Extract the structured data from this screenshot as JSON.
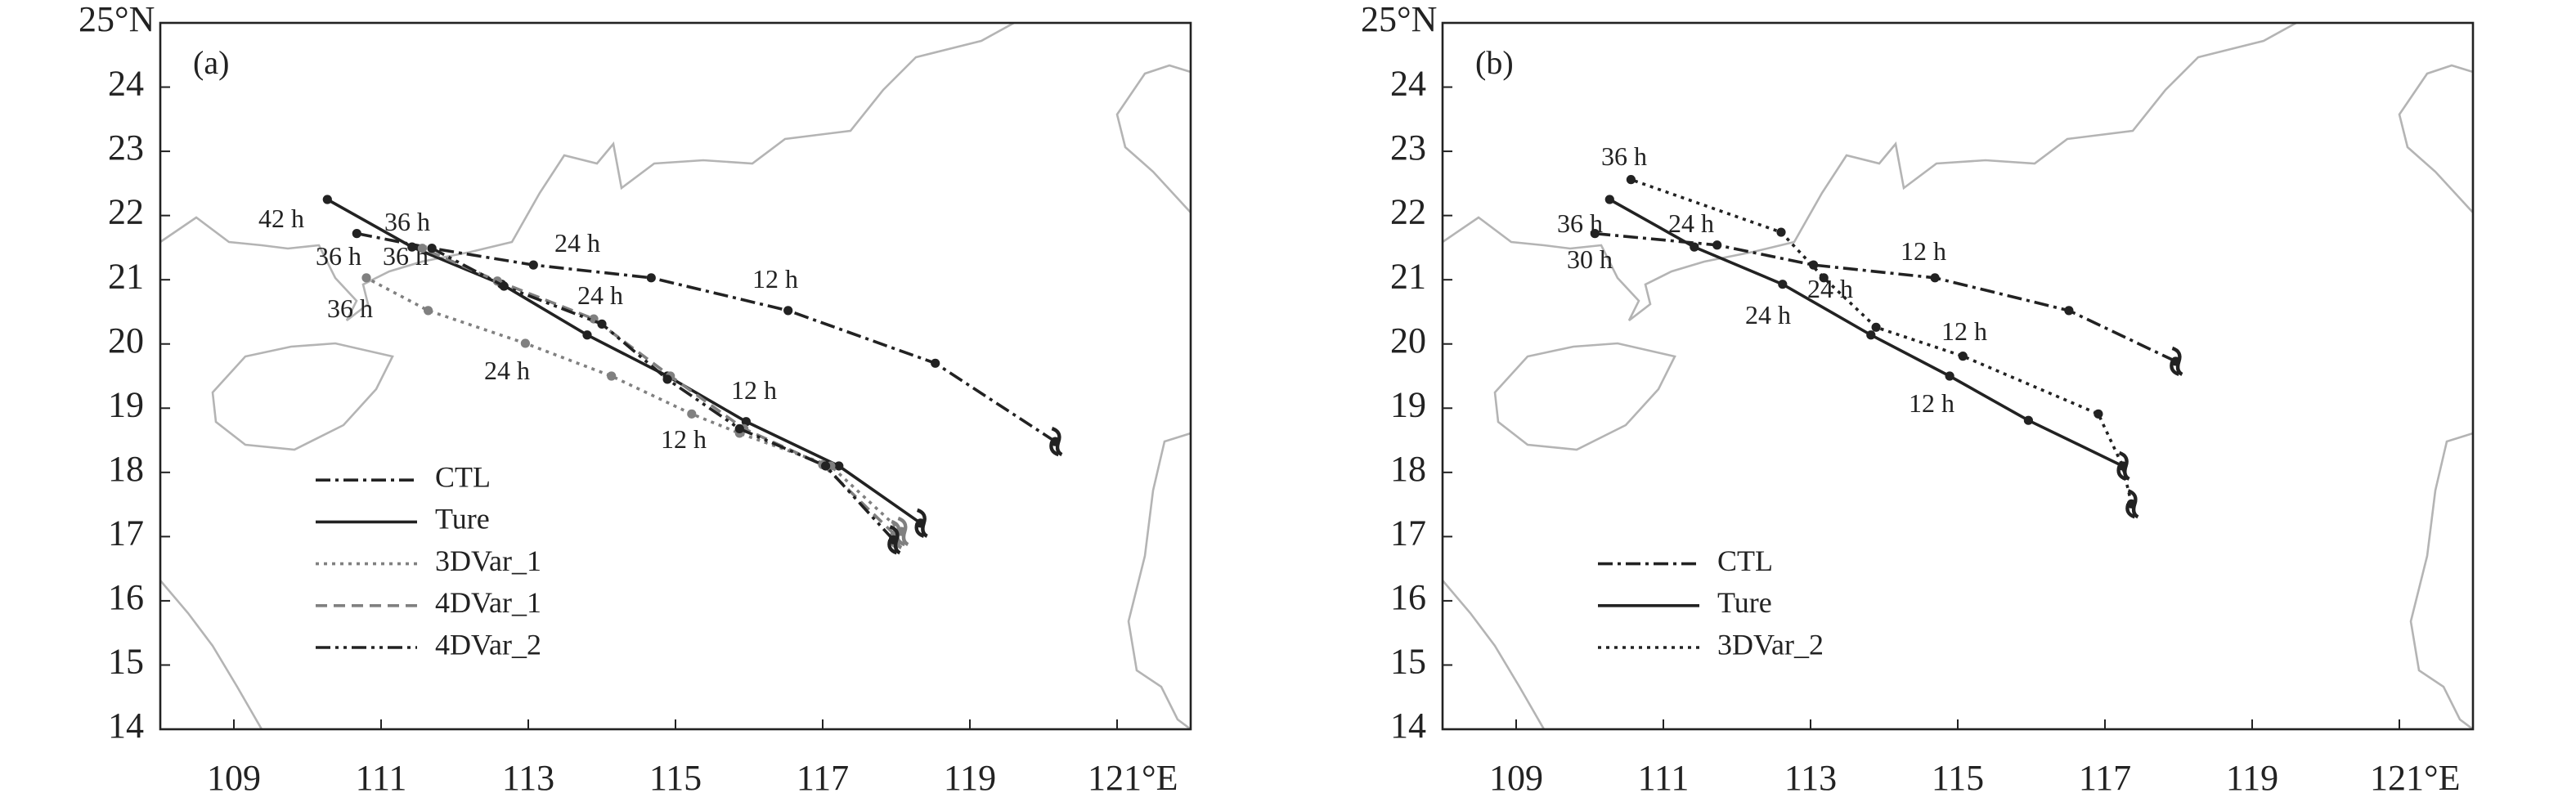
{
  "chart_data": [
    {
      "type": "line",
      "panel_label": "(a)",
      "xlim": [
        108,
        122
      ],
      "ylim": [
        14,
        25
      ],
      "xticks": [
        109,
        111,
        113,
        115,
        117,
        119,
        {
          "value": 121,
          "label": "121°E"
        }
      ],
      "yticks": [
        14,
        15,
        16,
        17,
        18,
        19,
        20,
        21,
        22,
        23,
        24,
        {
          "value": 25,
          "label": "25°N"
        }
      ],
      "legend": "lower left",
      "annotations": [
        "42 h",
        "36 h",
        "36 h",
        "36 h",
        "24 h",
        "12 h",
        "24 h",
        "36 h",
        "24 h",
        "12 h",
        "12 h"
      ],
      "series": [
        {
          "name": "CTL",
          "color": "#222222",
          "style": "dashdot",
          "x": [
            120.16,
            118.53,
            116.53,
            114.67,
            113.07,
            111.69,
            110.67
          ],
          "values": [
            18.48,
            19.7,
            20.52,
            21.03,
            21.23,
            21.49,
            21.72
          ]
        },
        {
          "name": "Ture",
          "color": "#222222",
          "style": "solid",
          "x": [
            118.33,
            117.22,
            115.96,
            114.89,
            113.8,
            112.64,
            111.42,
            110.27
          ],
          "values": [
            17.21,
            18.1,
            18.79,
            19.5,
            20.14,
            20.93,
            21.51,
            22.25
          ]
        },
        {
          "name": "3DVar_1",
          "color": "#808080",
          "style": "dotted",
          "x": [
            118.07,
            117.11,
            115.87,
            115.22,
            114.13,
            112.96,
            111.64,
            110.8
          ],
          "values": [
            17.08,
            18.1,
            18.61,
            18.91,
            19.5,
            20.01,
            20.52,
            21.03
          ]
        },
        {
          "name": "4DVar_1",
          "color": "#808080",
          "style": "dashed",
          "x": [
            117.98,
            117.0,
            115.93,
            114.93,
            113.89,
            112.58,
            111.56
          ],
          "values": [
            17.03,
            18.12,
            18.68,
            19.5,
            20.39,
            20.98,
            21.49
          ]
        },
        {
          "name": "4DVar_2",
          "color": "#222222",
          "style": "dashdotdot",
          "x": [
            117.96,
            117.04,
            115.87,
            114.89,
            114.0,
            112.67,
            111.69
          ],
          "values": [
            16.95,
            18.1,
            18.68,
            19.45,
            20.31,
            20.9,
            21.49
          ]
        }
      ]
    },
    {
      "type": "line",
      "panel_label": "(b)",
      "xlim": [
        108,
        122
      ],
      "ylim": [
        14,
        25
      ],
      "xticks": [
        109,
        111,
        113,
        115,
        117,
        119,
        {
          "value": 121,
          "label": "121°E"
        }
      ],
      "yticks": [
        14,
        15,
        16,
        17,
        18,
        19,
        20,
        21,
        22,
        23,
        24,
        {
          "value": 25,
          "label": "25°N"
        }
      ],
      "legend": "lower left",
      "annotations": [
        "36 h",
        "36 h",
        "24 h",
        "30 h",
        "12 h",
        "24 h",
        "12 h",
        "24 h",
        "12 h"
      ],
      "series": [
        {
          "name": "CTL",
          "color": "#222222",
          "style": "dashdot",
          "x": [
            117.96,
            116.51,
            114.69,
            113.04,
            111.73,
            110.07
          ],
          "values": [
            19.73,
            20.52,
            21.03,
            21.23,
            21.54,
            21.72
          ]
        },
        {
          "name": "Ture",
          "color": "#222222",
          "style": "solid",
          "x": [
            117.24,
            115.96,
            114.89,
            113.82,
            112.62,
            111.42,
            110.27
          ],
          "values": [
            18.1,
            18.81,
            19.5,
            20.14,
            20.93,
            21.51,
            22.25
          ]
        },
        {
          "name": "3DVar_2",
          "color": "#222222",
          "style": "dotted",
          "x": [
            117.36,
            117.24,
            116.91,
            115.07,
            113.89,
            113.18,
            112.6,
            110.56
          ],
          "values": [
            17.51,
            18.1,
            18.91,
            19.81,
            20.26,
            21.03,
            21.74,
            22.56
          ]
        }
      ]
    }
  ]
}
